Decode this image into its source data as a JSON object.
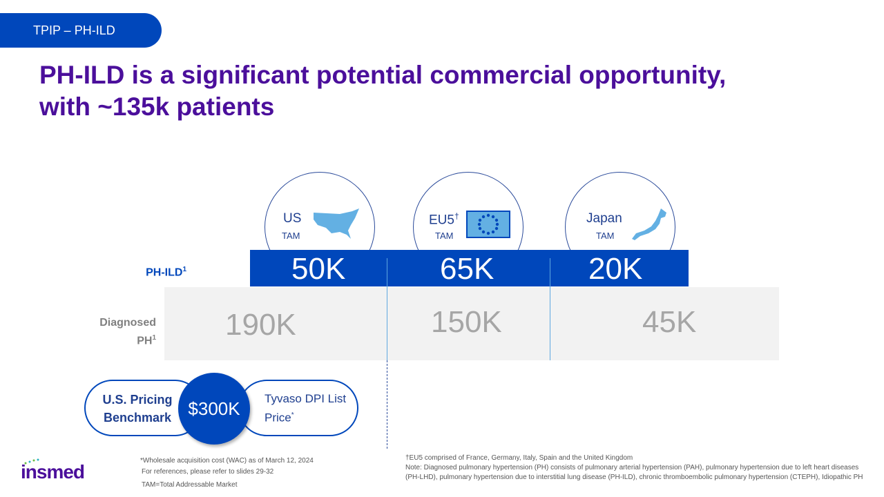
{
  "section_tag": "TPIP – PH-ILD",
  "title_line1": "PH-ILD is a significant potential commercial opportunity,",
  "title_line2": "with ~135k patients",
  "regions": [
    {
      "name": "US",
      "tam": "TAM",
      "ph_ild": "50K",
      "diagnosed": "190K",
      "icon": "us-map-icon"
    },
    {
      "name": "EU5",
      "dagger": "†",
      "tam": "TAM",
      "ph_ild": "65K",
      "diagnosed": "150K",
      "icon": "eu-flag-icon"
    },
    {
      "name": "Japan",
      "tam": "TAM",
      "ph_ild": "20K",
      "diagnosed": "45K",
      "icon": "japan-map-icon"
    }
  ],
  "row_labels": {
    "ph_ild": "PH-ILD",
    "ph_ild_sup": "1",
    "diagnosed_1": "Diagnosed",
    "diagnosed_2": "PH",
    "diagnosed_sup": "1"
  },
  "pricing": {
    "label_1": "U.S. Pricing",
    "label_2": "Benchmark",
    "value": "$300K",
    "desc_1": "Tyvaso DPI List",
    "desc_2": "Price",
    "desc_sup": "*"
  },
  "footnotes_left": [
    "*Wholesale acquisition cost (WAC) as of March 12, 2024",
    "For references, please refer to slides 29-32",
    "TAM=Total Addressable Market"
  ],
  "footnotes_right": [
    "†EU5 comprised of France, Germany, Italy, Spain and the United Kingdom",
    "Note: Diagnosed pulmonary hypertension (PH) consists of pulmonary arterial hypertension (PAH), pulmonary hypertension due to left heart diseases (PH-LHD), pulmonary hypertension due to interstitial lung disease (PH-ILD), chronic thromboembolic pulmonary hypertension (CTEPH), Idiopathic PH"
  ],
  "logo": "insmed",
  "colors": {
    "brand_blue": "#0047BB",
    "title_purple": "#4B0F9B",
    "light_blue": "#5ea7e0"
  }
}
